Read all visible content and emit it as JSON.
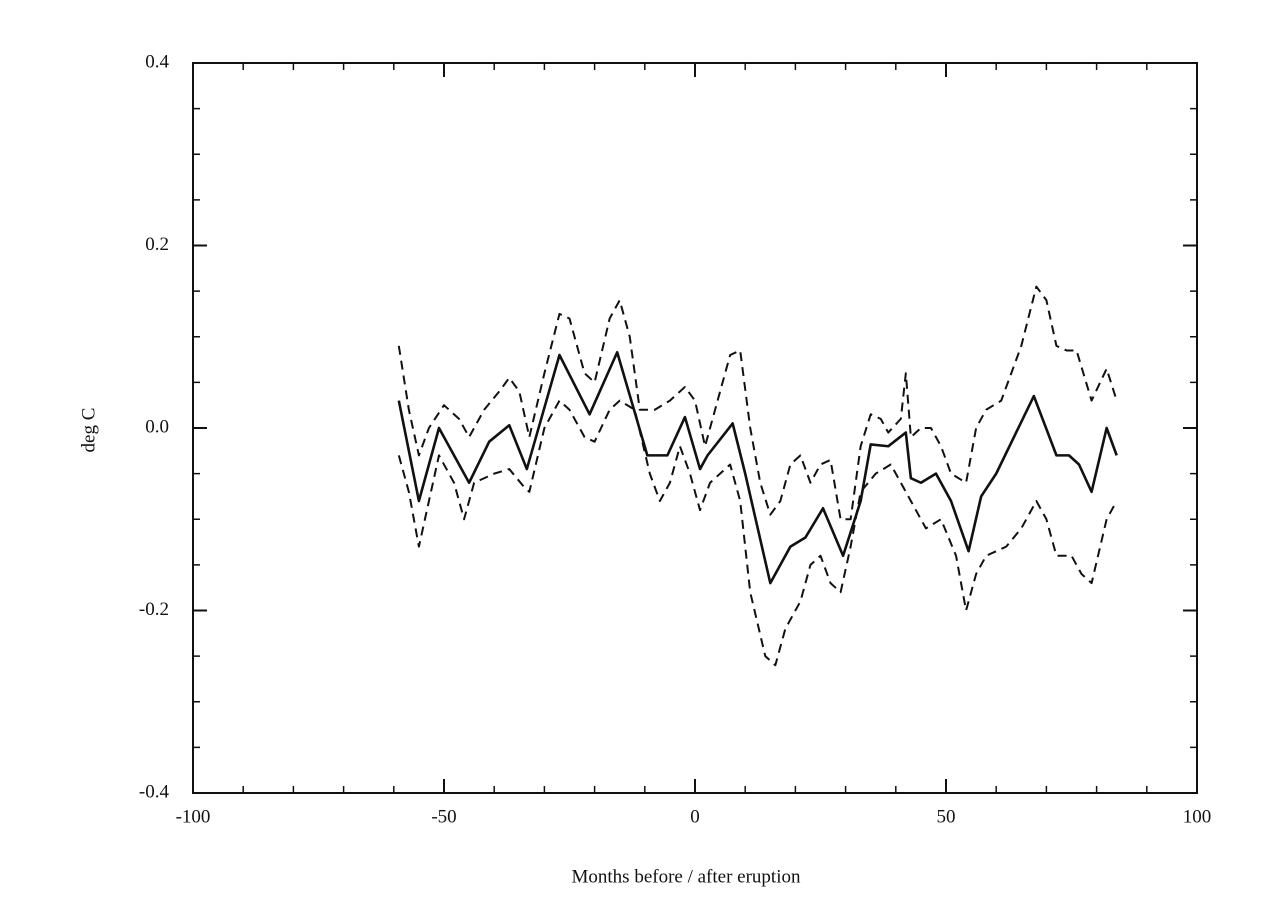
{
  "chart_data": {
    "type": "line",
    "xlabel": "Months before / after eruption",
    "ylabel": "deg C",
    "xlim": [
      -100,
      100
    ],
    "ylim": [
      -0.4,
      0.4
    ],
    "xticks": [
      -100,
      -50,
      0,
      50,
      100
    ],
    "yticks": [
      {
        "value": -0.4,
        "label": "-0.4"
      },
      {
        "value": -0.2,
        "label": "-0.2"
      },
      {
        "value": 0,
        "label": "0.0"
      },
      {
        "value": 0.2,
        "label": "0.2"
      },
      {
        "value": 0.4,
        "label": "0.4"
      }
    ],
    "xminor": 5,
    "yminor": 4,
    "series": [
      {
        "color": "#111111",
        "dashed": false,
        "x": [
          -59,
          -55,
          -51,
          -45,
          -41,
          -37,
          -33.5,
          -27,
          -21,
          -15.5,
          -9.5,
          -5.5,
          -2,
          1,
          2.5,
          7.5,
          10,
          15,
          19,
          22,
          25.5,
          29.5,
          33,
          35,
          38.5,
          42,
          43,
          45,
          48,
          51,
          54.5,
          57,
          60,
          67.5,
          72,
          74.5,
          76.5,
          79,
          82,
          84
        ],
        "values": [
          0.03,
          -0.08,
          0.0,
          -0.06,
          -0.015,
          0.003,
          -0.045,
          0.08,
          0.015,
          0.083,
          -0.03,
          -0.03,
          0.012,
          -0.045,
          -0.03,
          0.005,
          -0.05,
          -0.17,
          -0.13,
          -0.12,
          -0.088,
          -0.14,
          -0.08,
          -0.018,
          -0.02,
          -0.005,
          -0.055,
          -0.06,
          -0.05,
          -0.08,
          -0.135,
          -0.075,
          -0.05,
          0.035,
          -0.03,
          -0.03,
          -0.04,
          -0.07,
          0.0,
          -0.03
        ]
      },
      {
        "color": "#111111",
        "dashed": true,
        "x": [
          -59,
          -57,
          -55,
          -53,
          -50,
          -47,
          -45,
          -42,
          -39,
          -37,
          -35,
          -33,
          -30,
          -27,
          -25,
          -22,
          -20,
          -17,
          -15,
          -13,
          -11,
          -8,
          -5,
          -2,
          0,
          2,
          4,
          7,
          9,
          11,
          13,
          15,
          17,
          19,
          21,
          23,
          25,
          27,
          29,
          31,
          33,
          35,
          37,
          38.5,
          41,
          42,
          43,
          45,
          47,
          49,
          51,
          54,
          56,
          58,
          61,
          65,
          68,
          70,
          72,
          74,
          76,
          79,
          82,
          84
        ],
        "values": [
          0.09,
          0.02,
          -0.03,
          0.0,
          0.025,
          0.01,
          -0.01,
          0.02,
          0.04,
          0.055,
          0.04,
          -0.01,
          0.06,
          0.125,
          0.12,
          0.06,
          0.05,
          0.12,
          0.14,
          0.1,
          0.02,
          0.02,
          0.03,
          0.045,
          0.03,
          -0.02,
          0.02,
          0.08,
          0.085,
          0.0,
          -0.06,
          -0.095,
          -0.08,
          -0.04,
          -0.03,
          -0.06,
          -0.04,
          -0.035,
          -0.1,
          -0.1,
          -0.02,
          0.015,
          0.01,
          -0.005,
          0.01,
          0.06,
          -0.01,
          0.0,
          0.0,
          -0.02,
          -0.05,
          -0.06,
          0.0,
          0.02,
          0.03,
          0.09,
          0.155,
          0.14,
          0.09,
          0.085,
          0.085,
          0.03,
          0.065,
          0.03
        ]
      },
      {
        "color": "#111111",
        "dashed": true,
        "x": [
          -59,
          -57,
          -55,
          -53,
          -51,
          -48,
          -46,
          -44,
          -40,
          -37,
          -34,
          -33,
          -30,
          -27,
          -25,
          -22,
          -20,
          -17,
          -15,
          -12,
          -9,
          -7,
          -5,
          -3,
          -1,
          1,
          3,
          7,
          9,
          11,
          14,
          16,
          18,
          21,
          23,
          25,
          27,
          29,
          31,
          33,
          36,
          39,
          41,
          43,
          46,
          49,
          52,
          54,
          56,
          58,
          62,
          65,
          68,
          70,
          72,
          75,
          77,
          79,
          82,
          84
        ],
        "values": [
          -0.03,
          -0.07,
          -0.13,
          -0.08,
          -0.03,
          -0.06,
          -0.1,
          -0.06,
          -0.05,
          -0.045,
          -0.065,
          -0.07,
          0.0,
          0.03,
          0.02,
          -0.01,
          -0.015,
          0.02,
          0.03,
          0.02,
          -0.05,
          -0.08,
          -0.06,
          -0.02,
          -0.05,
          -0.09,
          -0.06,
          -0.04,
          -0.08,
          -0.18,
          -0.25,
          -0.26,
          -0.22,
          -0.19,
          -0.15,
          -0.14,
          -0.17,
          -0.18,
          -0.13,
          -0.07,
          -0.05,
          -0.04,
          -0.06,
          -0.08,
          -0.11,
          -0.1,
          -0.14,
          -0.2,
          -0.16,
          -0.14,
          -0.13,
          -0.11,
          -0.08,
          -0.1,
          -0.14,
          -0.14,
          -0.16,
          -0.17,
          -0.1,
          -0.08
        ]
      }
    ]
  }
}
